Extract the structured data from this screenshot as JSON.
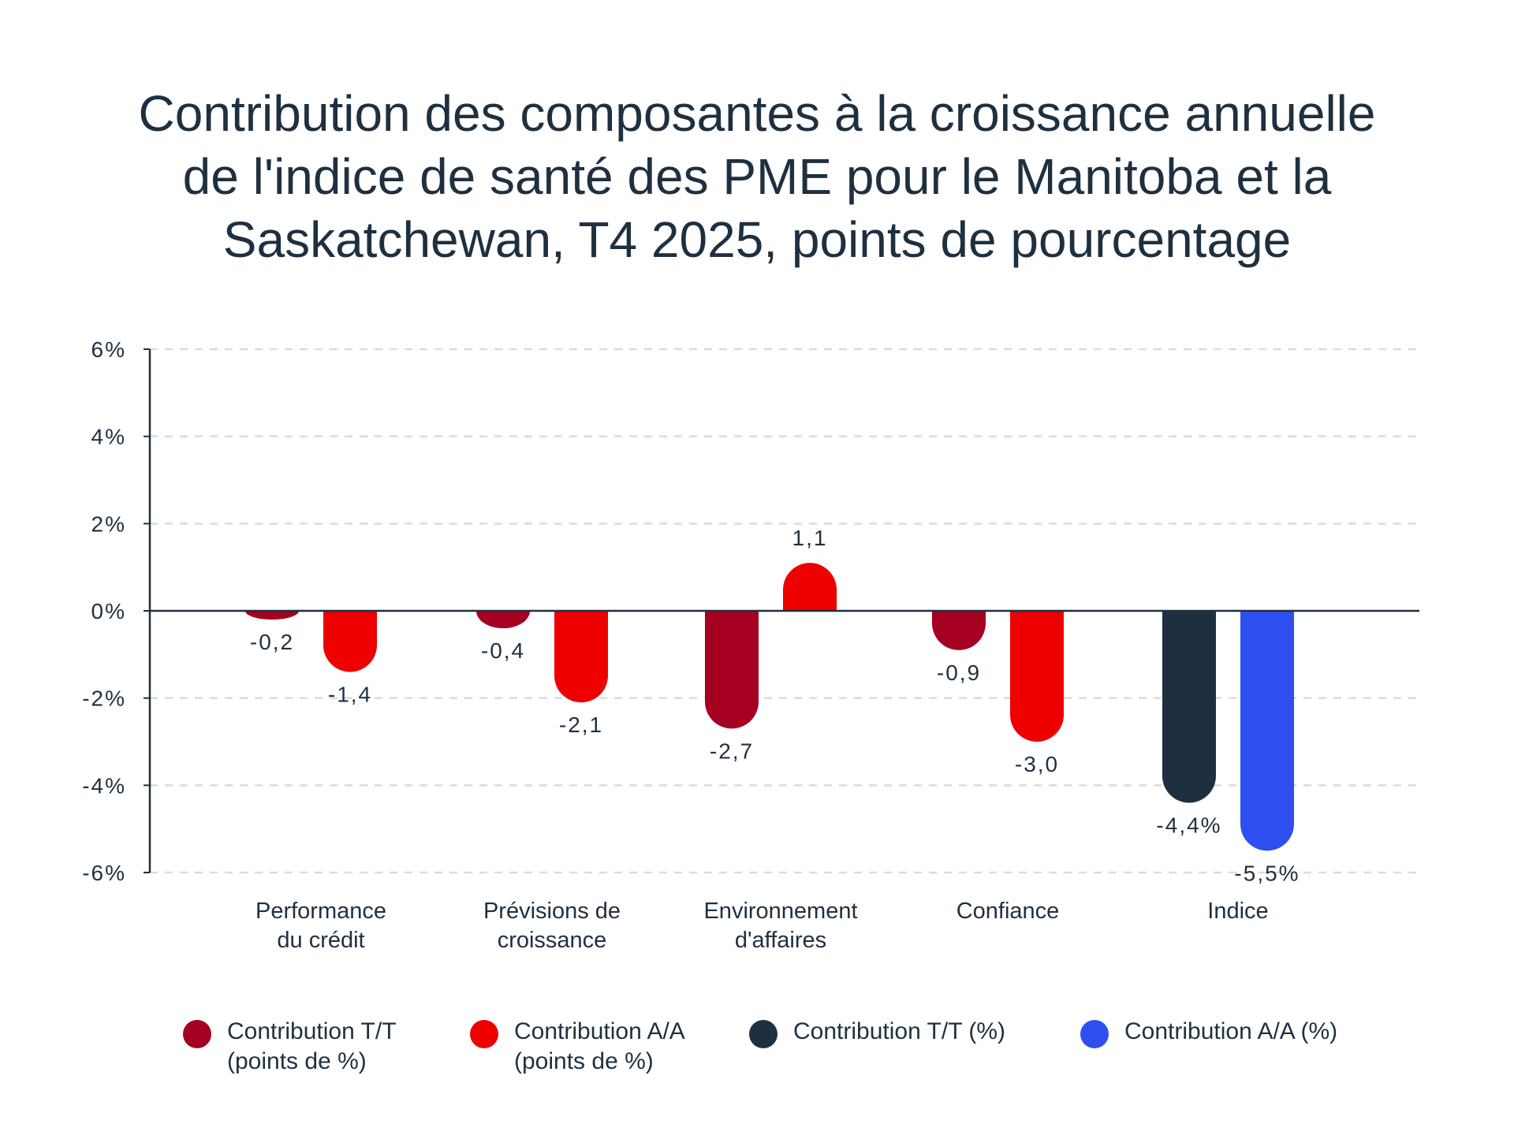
{
  "chart_data": {
    "type": "bar",
    "title_lines": [
      "Contribution des composantes à la croissance annuelle",
      "de l'indice de santé des PME pour le Manitoba et la",
      "Saskatchewan, T4 2025, points de pourcentage"
    ],
    "categories": [
      [
        "Performance",
        "du crédit"
      ],
      [
        "Prévisions de",
        "croissance"
      ],
      [
        "Environnement",
        "d'affaires"
      ],
      [
        "Confiance"
      ],
      [
        "Indice"
      ]
    ],
    "ylim": [
      -6,
      6
    ],
    "yticks": [
      6,
      4,
      2,
      0,
      -2,
      -4,
      -6
    ],
    "ytick_labels": [
      "6%",
      "4%",
      "2%",
      "0%",
      "-2%",
      "-4%",
      "-6%"
    ],
    "grid": true,
    "legend_position": "bottom",
    "bars": [
      {
        "category": 0,
        "slot": 0,
        "value": -0.2,
        "label": "-0,2",
        "color": "#a50021"
      },
      {
        "category": 0,
        "slot": 1,
        "value": -1.4,
        "label": "-1,4",
        "color": "#ee0000"
      },
      {
        "category": 1,
        "slot": 0,
        "value": -0.4,
        "label": "-0,4",
        "color": "#a50021"
      },
      {
        "category": 1,
        "slot": 1,
        "value": -2.1,
        "label": "-2,1",
        "color": "#ee0000"
      },
      {
        "category": 2,
        "slot": 0,
        "value": -2.7,
        "label": "-2,7",
        "color": "#a50021"
      },
      {
        "category": 2,
        "slot": 1,
        "value": 1.1,
        "label": "1,1",
        "color": "#ee0000"
      },
      {
        "category": 3,
        "slot": 0,
        "value": -0.9,
        "label": "-0,9",
        "color": "#a50021"
      },
      {
        "category": 3,
        "slot": 1,
        "value": -3.0,
        "label": "-3,0",
        "color": "#ee0000"
      },
      {
        "category": 4,
        "slot": 0,
        "value": -4.4,
        "label": "-4,4%",
        "color": "#1e3040"
      },
      {
        "category": 4,
        "slot": 1,
        "value": -5.5,
        "label": "-5,5%",
        "color": "#2e4ff0"
      }
    ],
    "legend": [
      {
        "lines": [
          "Contribution T/T",
          "(points de %)"
        ],
        "color": "#a50021"
      },
      {
        "lines": [
          "Contribution A/A",
          "(points de %)"
        ],
        "color": "#ee0000"
      },
      {
        "lines": [
          "Contribution T/T (%)"
        ],
        "color": "#1e3040"
      },
      {
        "lines": [
          "Contribution A/A (%)"
        ],
        "color": "#2e4ff0"
      }
    ],
    "colors": {
      "text": "#1e3040",
      "axis": "#1e3040",
      "grid": "#dcdcd4"
    }
  }
}
